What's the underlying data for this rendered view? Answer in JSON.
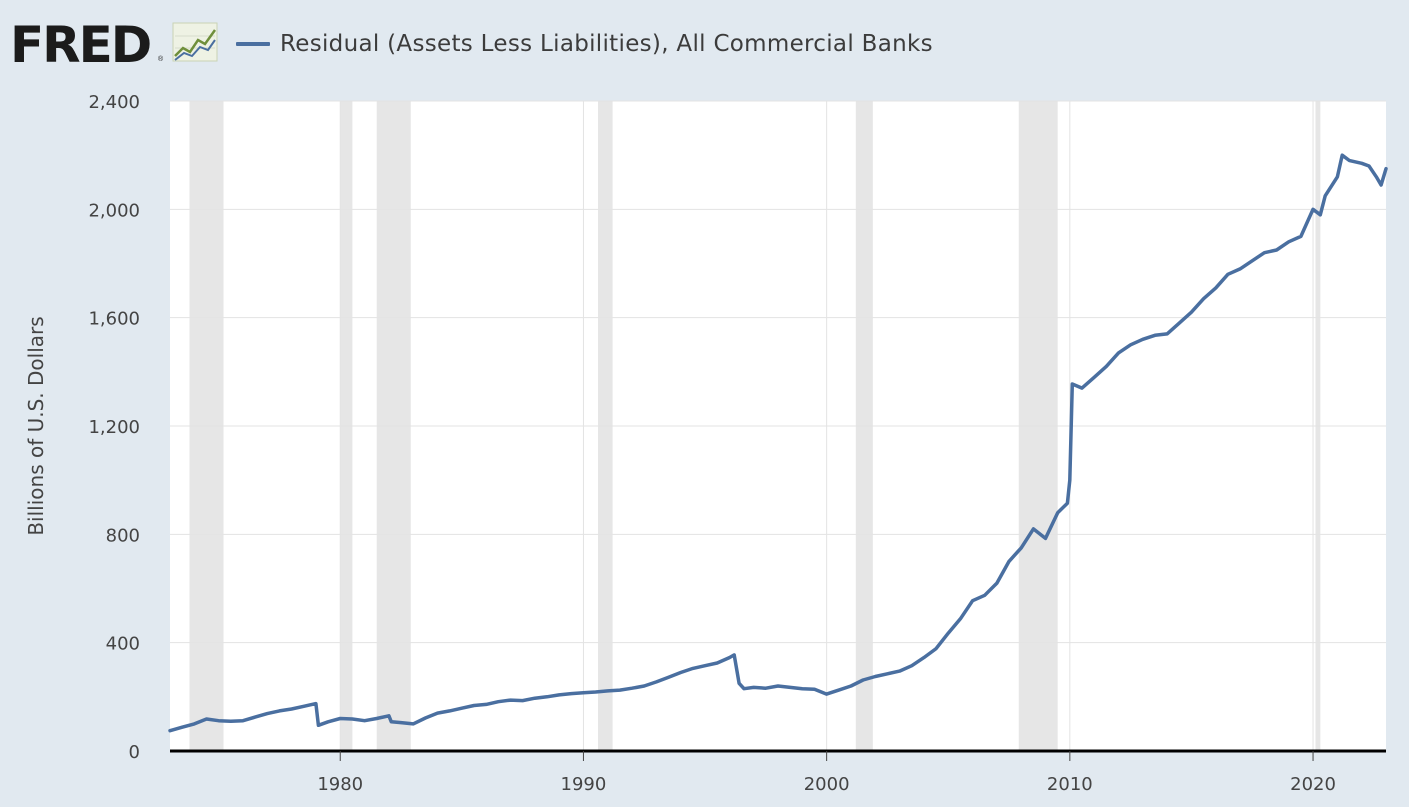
{
  "header": {
    "logo_text": "FRED",
    "logo_registered": "®",
    "logo_icon": "line-chart-icon",
    "legend_label": "Residual (Assets Less Liabilities), All Commercial Banks",
    "legend_color": "#4a6fa0"
  },
  "chart_data": {
    "type": "line",
    "title": "",
    "ylabel": "Billions of U.S. Dollars",
    "xlabel": "",
    "ylim": [
      0,
      2400
    ],
    "xlim": [
      1973.0,
      2023.0
    ],
    "y_ticks": [
      0,
      400,
      800,
      1200,
      1600,
      2000,
      2400
    ],
    "y_tick_labels": [
      "0",
      "400",
      "800",
      "1,200",
      "1,600",
      "2,000",
      "2,400"
    ],
    "x_ticks": [
      1980,
      1990,
      2000,
      2010,
      2020
    ],
    "x_tick_labels": [
      "1980",
      "1990",
      "2000",
      "2010",
      "2020"
    ],
    "grid": true,
    "line_color": "#4a6fa0",
    "recessions": [
      [
        1973.8,
        1975.2
      ],
      [
        1980.0,
        1980.5
      ],
      [
        1981.5,
        1982.9
      ],
      [
        1990.6,
        1991.2
      ],
      [
        2001.2,
        2001.9
      ],
      [
        2007.9,
        2009.5
      ],
      [
        2020.1,
        2020.3
      ]
    ],
    "series": [
      {
        "x": [
          1973.0,
          1973.5,
          1974.0,
          1974.5,
          1975.0,
          1975.5,
          1976.0,
          1976.5,
          1977.0,
          1977.5,
          1978.0,
          1978.5,
          1979.0,
          1979.1,
          1979.5,
          1980.0,
          1980.5,
          1981.0,
          1981.5,
          1982.0,
          1982.1,
          1982.5,
          1983.0,
          1983.5,
          1984.0,
          1984.5,
          1985.0,
          1985.5,
          1986.0,
          1986.5,
          1987.0,
          1987.5,
          1988.0,
          1988.5,
          1989.0,
          1989.5,
          1990.0,
          1990.5,
          1991.0,
          1991.5,
          1992.0,
          1992.5,
          1993.0,
          1993.5,
          1994.0,
          1994.5,
          1995.0,
          1995.5,
          1996.0,
          1996.2,
          1996.4,
          1996.6,
          1997.0,
          1997.5,
          1998.0,
          1998.5,
          1999.0,
          1999.5,
          2000.0,
          2000.5,
          2001.0,
          2001.5,
          2002.0,
          2002.5,
          2003.0,
          2003.5,
          2004.0,
          2004.5,
          2005.0,
          2005.5,
          2006.0,
          2006.5,
          2007.0,
          2007.5,
          2008.0,
          2008.5,
          2009.0,
          2009.5,
          2009.9,
          2010.0,
          2010.1,
          2010.5,
          2011.0,
          2011.5,
          2012.0,
          2012.5,
          2013.0,
          2013.5,
          2014.0,
          2014.5,
          2015.0,
          2015.5,
          2016.0,
          2016.5,
          2017.0,
          2017.5,
          2018.0,
          2018.5,
          2019.0,
          2019.5,
          2020.0,
          2020.3,
          2020.5,
          2021.0,
          2021.2,
          2021.5,
          2022.0,
          2022.3,
          2022.6,
          2022.8,
          2023.0
        ],
        "y": [
          75,
          88,
          100,
          118,
          112,
          110,
          112,
          125,
          138,
          148,
          155,
          165,
          175,
          95,
          108,
          120,
          118,
          112,
          120,
          130,
          108,
          105,
          100,
          122,
          140,
          148,
          158,
          168,
          172,
          182,
          188,
          186,
          195,
          200,
          207,
          212,
          215,
          218,
          222,
          225,
          232,
          240,
          255,
          272,
          290,
          305,
          315,
          325,
          345,
          355,
          250,
          230,
          235,
          232,
          240,
          235,
          230,
          228,
          210,
          225,
          240,
          262,
          275,
          285,
          295,
          315,
          345,
          378,
          435,
          488,
          555,
          575,
          620,
          700,
          750,
          820,
          785,
          880,
          915,
          1000,
          1355,
          1340,
          1380,
          1420,
          1470,
          1500,
          1520,
          1535,
          1540,
          1580,
          1620,
          1670,
          1710,
          1760,
          1780,
          1810,
          1840,
          1850,
          1880,
          1900,
          2000,
          1980,
          2050,
          2120,
          2200,
          2180,
          2170,
          2160,
          2120,
          2090,
          2150
        ]
      }
    ]
  }
}
